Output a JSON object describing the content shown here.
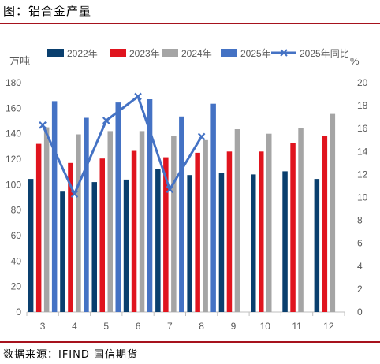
{
  "figure_title": "图：铝合金产量",
  "source_note": "数据来源：IFIND 国信期货",
  "chart_data": {
    "type": "bar",
    "categories": [
      "3",
      "4",
      "5",
      "6",
      "7",
      "8",
      "9",
      "10",
      "11",
      "12"
    ],
    "ylabel_left": "万吨",
    "ylabel_right": "%",
    "ylim_left": [
      0,
      180
    ],
    "yticks_left": [
      0,
      20,
      40,
      60,
      80,
      100,
      120,
      140,
      160,
      180
    ],
    "ylim_right": [
      0,
      20
    ],
    "yticks_right": [
      0,
      2,
      4,
      6,
      8,
      10,
      12,
      14,
      16,
      18,
      20
    ],
    "gridlines": false,
    "legend_position": "top",
    "series": [
      {
        "name": "2022年",
        "type": "bar",
        "axis": "left",
        "color": "#0a3f6e",
        "values": [
          104.5,
          94.5,
          102,
          104,
          112,
          107.5,
          109,
          108,
          110.5,
          104.5
        ]
      },
      {
        "name": "2023年",
        "type": "bar",
        "axis": "left",
        "color": "#e0141e",
        "values": [
          132,
          117,
          120.5,
          126.5,
          121.5,
          125,
          126,
          126,
          133,
          138.5
        ]
      },
      {
        "name": "2024年",
        "type": "bar",
        "axis": "left",
        "color": "#a5a5a5",
        "values": [
          145,
          139.5,
          142,
          142,
          138,
          135,
          143.5,
          140,
          144.5,
          155.5
        ]
      },
      {
        "name": "2025年",
        "type": "bar",
        "axis": "left",
        "color": "#4472c4",
        "values": [
          165.5,
          152.5,
          164.5,
          167,
          153.5,
          163.5,
          null,
          null,
          null,
          null
        ]
      },
      {
        "name": "2025年同比",
        "type": "line",
        "axis": "right",
        "color": "#4472c4",
        "marker": "x",
        "values": [
          16.3,
          10.3,
          16.7,
          18.8,
          10.7,
          15.3,
          null,
          null,
          null,
          null
        ]
      }
    ]
  }
}
